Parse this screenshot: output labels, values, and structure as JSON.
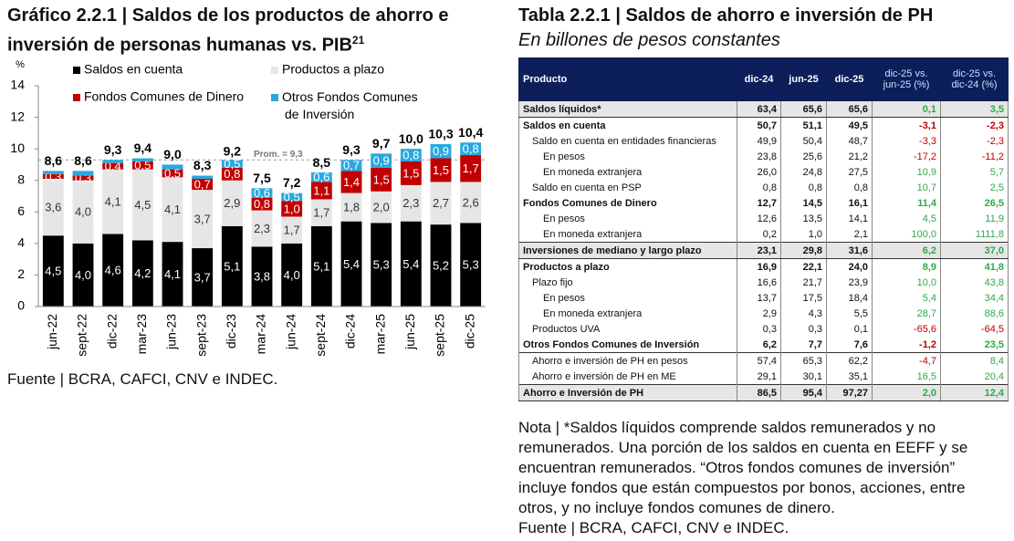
{
  "chart_data": {
    "type": "stacked_bar",
    "title": "Gráfico 2.2.1 | Saldos de los productos de ahorro e inversión de personas humanas vs. PIB",
    "title_footnote": "21",
    "y_label": "%",
    "categories": [
      "jun-22",
      "sept-22",
      "dic-22",
      "mar-23",
      "jun-23",
      "sept-23",
      "dic-23",
      "mar-24",
      "jun-24",
      "sept-24",
      "dic-24",
      "mar-25",
      "jun-25",
      "sept-25",
      "dic-25"
    ],
    "series": [
      {
        "name": "Saldos en cuenta",
        "color": "#000000",
        "values": [
          4.5,
          4.0,
          4.6,
          4.2,
          4.1,
          3.7,
          5.1,
          3.8,
          4.0,
          5.1,
          5.4,
          5.3,
          5.4,
          5.2,
          5.3
        ],
        "value_labels": [
          "4,5",
          "4,0",
          "4,6",
          "4,2",
          "4,1",
          "3,7",
          "5,1",
          "3,8",
          "4,0",
          "5,1",
          "5,4",
          "5,3",
          "5,4",
          "5,2",
          "5,3"
        ]
      },
      {
        "name": "Productos a plazo",
        "color": "#e6e6e6",
        "values": [
          3.6,
          4.0,
          4.1,
          4.5,
          4.1,
          3.7,
          2.9,
          2.3,
          1.7,
          1.7,
          1.8,
          2.0,
          2.3,
          2.7,
          2.6
        ],
        "value_labels": [
          "3,6",
          "4,0",
          "4,1",
          "4,5",
          "4,1",
          "3,7",
          "2,9",
          "2,3",
          "1,7",
          "1,7",
          "1,8",
          "2,0",
          "2,3",
          "2,7",
          "2,6"
        ]
      },
      {
        "name": "Fondos Comunes de Dinero",
        "color": "#c00000",
        "values": [
          0.3,
          0.3,
          0.4,
          0.5,
          0.5,
          0.7,
          0.8,
          0.8,
          1.0,
          1.1,
          1.4,
          1.5,
          1.5,
          1.5,
          1.7
        ],
        "value_labels": [
          "0,3",
          "0,3",
          "0,4",
          "0,5",
          "0,5",
          "0,7",
          "0,8",
          "0,8",
          "1,0",
          "1,1",
          "1,4",
          "1,5",
          "1,5",
          "1,5",
          "1,7"
        ]
      },
      {
        "name": "Otros Fondos Comunes de Inversión",
        "color": "#29a8e0",
        "values": [
          0.2,
          0.3,
          0.2,
          0.2,
          0.3,
          0.2,
          0.5,
          0.6,
          0.5,
          0.6,
          0.7,
          0.9,
          0.8,
          0.9,
          0.8
        ],
        "value_labels": [
          null,
          null,
          null,
          null,
          null,
          null,
          "0,5",
          "0,6",
          "0,5",
          "0,6",
          "0,7",
          "0,9",
          "0,8",
          "0,9",
          "0,8"
        ]
      }
    ],
    "totals": {
      "values": [
        8.6,
        8.6,
        9.3,
        9.4,
        9.0,
        8.3,
        9.2,
        7.5,
        7.2,
        8.5,
        9.3,
        9.7,
        10.0,
        10.3,
        10.4
      ],
      "value_labels": [
        "8,6",
        "8,6",
        "9,3",
        "9,4",
        "9,0",
        "8,3",
        "9,2",
        "7,5",
        "7,2",
        "8,5",
        "9,3",
        "9,7",
        "10,0",
        "10,3",
        "10,4"
      ]
    },
    "average": {
      "value": 9.3,
      "label": "Prom. = 9,3"
    },
    "ylim": [
      0,
      14
    ],
    "yticks": [
      0,
      2,
      4,
      6,
      8,
      10,
      12,
      14
    ],
    "source": "Fuente | BCRA, CAFCI, CNV e INDEC."
  },
  "table": {
    "title": "Tabla 2.2.1 | Saldos de ahorro e inversión de PH",
    "subtitle": "En billones de pesos constantes",
    "header": [
      "Producto",
      "dic-24",
      "jun-25",
      "dic-25",
      "dic-25 vs. jun-25 (%)",
      "dic-25 vs. dic-24 (%)"
    ],
    "rows": [
      [
        "Saldos líquidos*",
        "63,4",
        "65,6",
        "65,6",
        "0,1",
        "3,5"
      ],
      [
        "Saldos en cuenta",
        "50,7",
        "51,1",
        "49,5",
        "-3,1",
        "-2,3"
      ],
      [
        "Saldo en cuenta en entidades financieras",
        "49,9",
        "50,4",
        "48,7",
        "-3,3",
        "-2,3"
      ],
      [
        "En pesos",
        "23,8",
        "25,6",
        "21,2",
        "-17,2",
        "-11,2"
      ],
      [
        "En moneda extranjera",
        "26,0",
        "24,8",
        "27,5",
        "10,9",
        "5,7"
      ],
      [
        "Saldo en cuenta en PSP",
        "0,8",
        "0,8",
        "0,8",
        "10,7",
        "2,5"
      ],
      [
        "Fondos Comunes de Dinero",
        "12,7",
        "14,5",
        "16,1",
        "11,4",
        "26,5"
      ],
      [
        "En pesos",
        "12,6",
        "13,5",
        "14,1",
        "4,5",
        "11,9"
      ],
      [
        "En moneda extranjera",
        "0,2",
        "1,0",
        "2,1",
        "100,0",
        "1111,8"
      ],
      [
        "Inversiones de mediano y largo plazo",
        "23,1",
        "29,8",
        "31,6",
        "6,2",
        "37,0"
      ],
      [
        "Productos a plazo",
        "16,9",
        "22,1",
        "24,0",
        "8,9",
        "41,8"
      ],
      [
        "Plazo fijo",
        "16,6",
        "21,7",
        "23,9",
        "10,0",
        "43,8"
      ],
      [
        "En pesos",
        "13,7",
        "17,5",
        "18,4",
        "5,4",
        "34,4"
      ],
      [
        "En moneda extranjera",
        "2,9",
        "4,3",
        "5,5",
        "28,7",
        "88,6"
      ],
      [
        "Productos UVA",
        "0,3",
        "0,3",
        "0,1",
        "-65,6",
        "-64,5"
      ],
      [
        "Otros Fondos Comunes de Inversión",
        "6,2",
        "7,7",
        "7,6",
        "-1,2",
        "23,5"
      ],
      [
        "Ahorro e inversión de PH en pesos",
        "57,4",
        "65,3",
        "62,2",
        "-4,7",
        "8,4"
      ],
      [
        "Ahorro e inversión de PH en ME",
        "29,1",
        "30,1",
        "35,1",
        "16,5",
        "20,4"
      ],
      [
        "Ahorro e Inversión de PH",
        "86,5",
        "95,4",
        "97,27",
        "2,0",
        "12,4"
      ]
    ],
    "note": "Nota | *Saldos líquidos comprende saldos remunerados y no remunerados. Una porción de los saldos en cuenta en EEFF y se encuentran remunerados. “Otros fondos comunes de inversión” incluye fondos que están compuestos por bonos, acciones, entre otros, y no incluye fondos comunes de dinero.",
    "source": "Fuente | BCRA, CAFCI, CNV e INDEC."
  }
}
